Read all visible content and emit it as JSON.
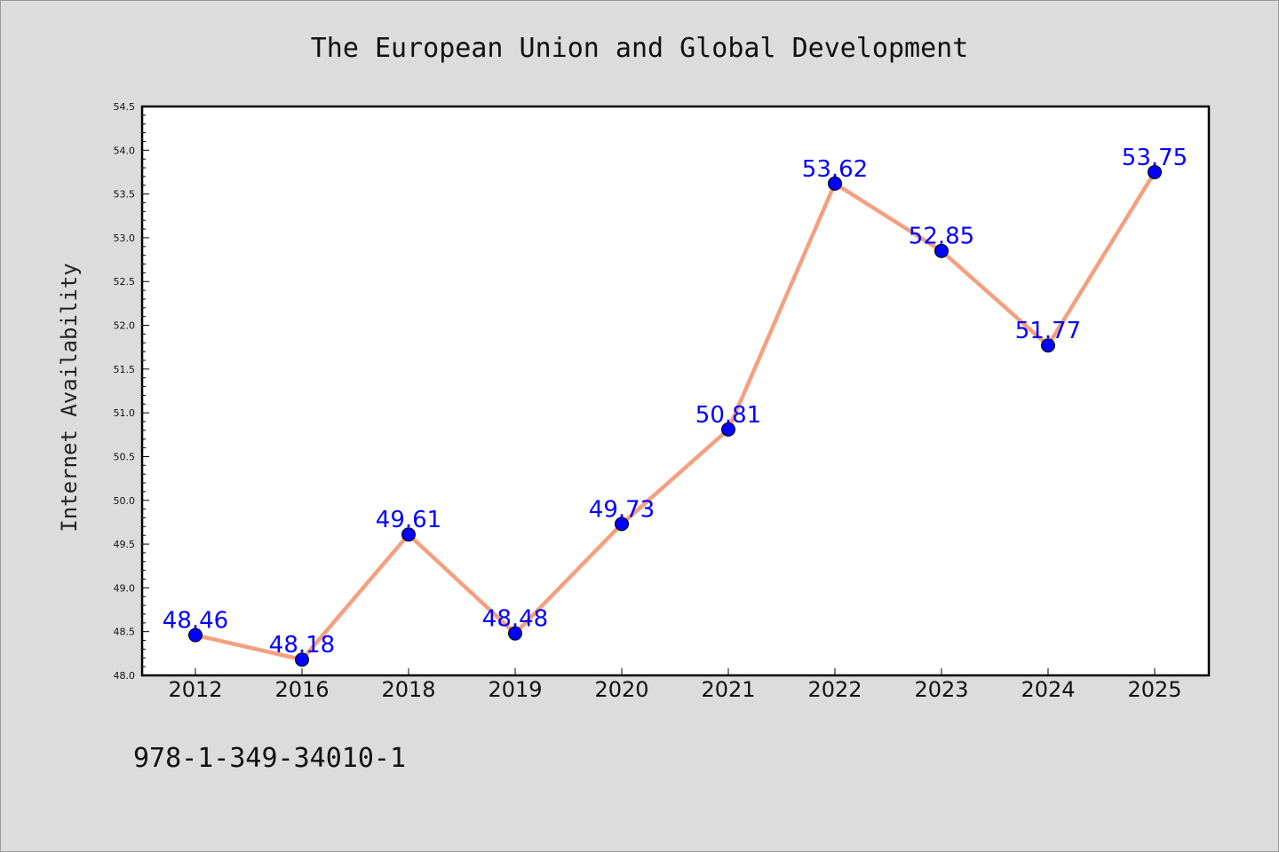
{
  "chart_data": {
    "type": "line",
    "title": "The European Union and Global Development",
    "xlabel": "",
    "ylabel": "Internet Availability",
    "categories": [
      "2012",
      "2016",
      "2018",
      "2019",
      "2020",
      "2021",
      "2022",
      "2023",
      "2024",
      "2025"
    ],
    "series": [
      {
        "values": [
          48.46,
          48.18,
          49.61,
          48.48,
          49.73,
          50.81,
          53.62,
          52.85,
          51.77,
          53.75
        ],
        "labels": [
          "48.46",
          "48.18",
          "49.61",
          "48.48",
          "49.73",
          "50.81",
          "53.62",
          "52.85",
          "51.77",
          "53.75"
        ],
        "line_color": "#f4a07f",
        "marker_color": "#0000ff"
      }
    ],
    "ylim": [
      48.0,
      54.5
    ],
    "yticks": [
      "48.0",
      "48.5",
      "49.0",
      "49.5",
      "50.0",
      "50.5",
      "51.0",
      "51.5",
      "52.0",
      "52.5",
      "53.0",
      "53.5",
      "54.0",
      "54.5"
    ],
    "grid": false,
    "legend": "none"
  },
  "footer": {
    "identifier": "978-1-349-34010-1"
  }
}
